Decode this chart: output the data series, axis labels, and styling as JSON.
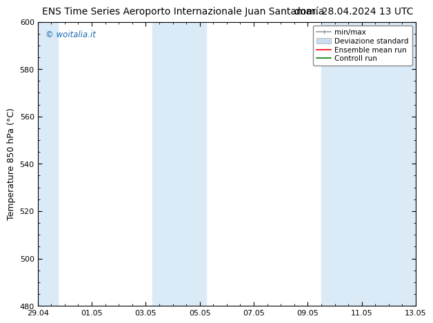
{
  "title_left": "ENS Time Series Aeroporto Internazionale Juan Santamaría",
  "title_right": "dom. 28.04.2024 13 UTC",
  "ylabel": "Temperature 850 hPa (°C)",
  "xlabel_ticks": [
    "29.04",
    "01.05",
    "03.05",
    "05.05",
    "07.05",
    "09.05",
    "11.05",
    "13.05"
  ],
  "ylim": [
    480,
    600
  ],
  "yticks": [
    480,
    500,
    520,
    540,
    560,
    580,
    600
  ],
  "bg_color": "#ffffff",
  "plot_bg_color": "#ffffff",
  "band_color": "#daeaf7",
  "shaded_bands": [
    {
      "xmin": 0.0,
      "xmax": 0.75
    },
    {
      "xmin": 4.25,
      "xmax": 6.25
    },
    {
      "xmin": 10.5,
      "xmax": 14.0
    }
  ],
  "watermark_text": "© woitalia.it",
  "watermark_color": "#1a6aad",
  "legend_labels": [
    "min/max",
    "Deviazione standard",
    "Ensemble mean run",
    "Controll run"
  ],
  "minmax_color": "#999999",
  "dev_std_color": "#c8ddf0",
  "ensemble_color": "#ff0000",
  "control_color": "#008000",
  "title_fontsize": 10,
  "tick_fontsize": 8,
  "ylabel_fontsize": 9,
  "x_start": 0,
  "x_end": 14,
  "x_tick_positions": [
    0,
    2,
    4,
    6,
    8,
    10,
    12,
    14
  ]
}
